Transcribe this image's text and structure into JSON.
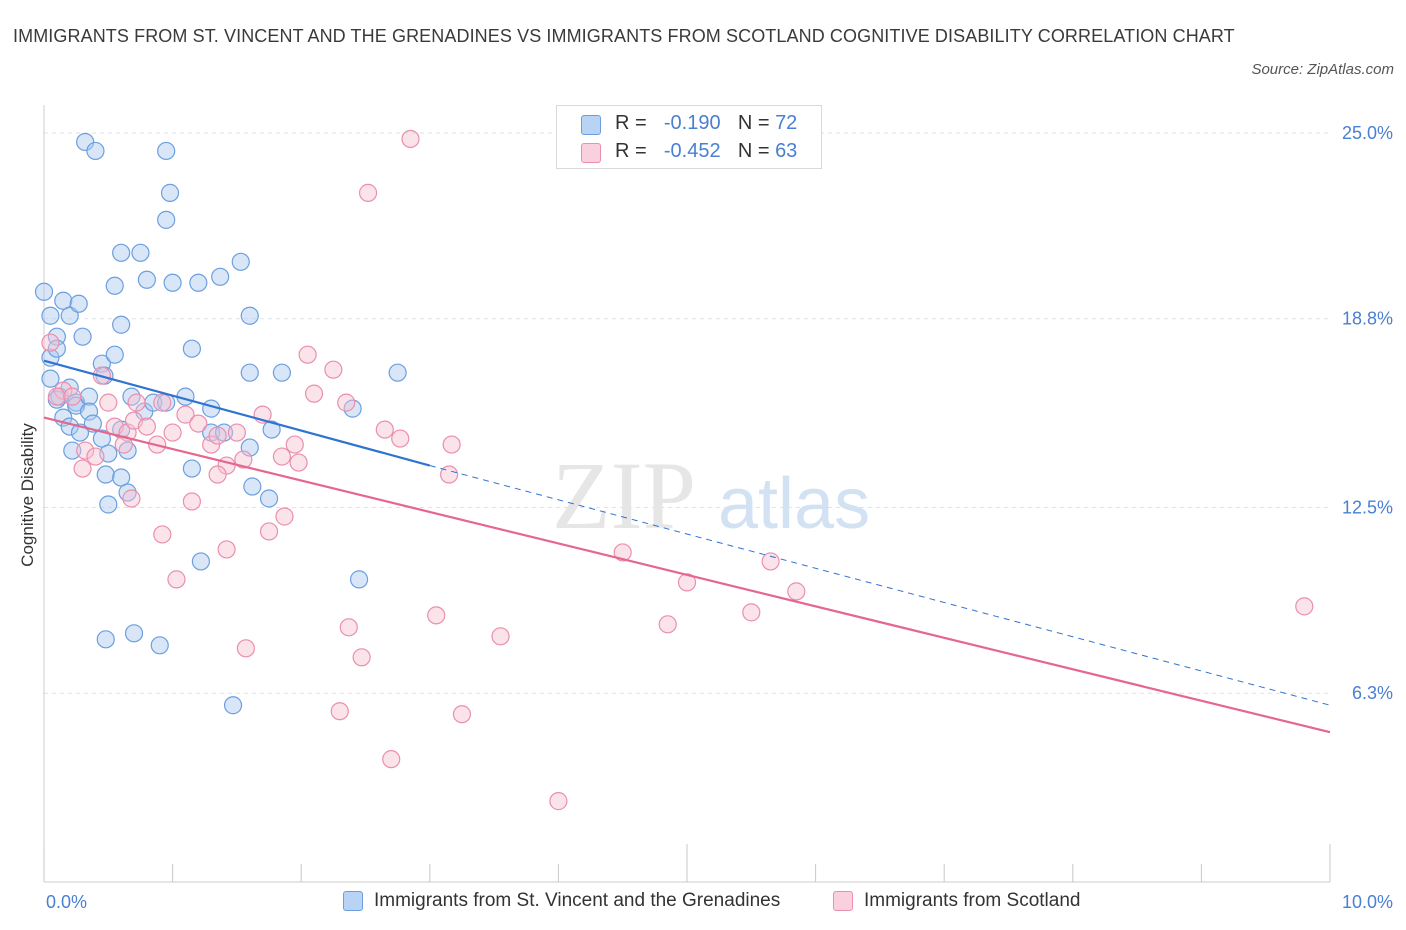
{
  "title": "IMMIGRANTS FROM ST. VINCENT AND THE GRENADINES VS IMMIGRANTS FROM SCOTLAND COGNITIVE DISABILITY CORRELATION CHART",
  "source": "Source: ZipAtlas.com",
  "watermark": {
    "zip": "ZIP",
    "atlas": "atlas"
  },
  "legend": {
    "series1": {
      "r_label": "R =",
      "r_value": "-0.190",
      "n_label": "N =",
      "n_value": "72"
    },
    "series2": {
      "r_label": "R =",
      "r_value": "-0.452",
      "n_label": "N =",
      "n_value": "63"
    }
  },
  "colors": {
    "blue_fill": "#a9c8f0",
    "blue_stroke": "#6c9fe0",
    "blue_line": "#2f74d0",
    "pink_fill": "#f6c0d1",
    "pink_stroke": "#ea8fae",
    "pink_line": "#e5668f",
    "tick_label": "#4a7fd1",
    "grid": "#dde3ea"
  },
  "chart_data": {
    "type": "scatter",
    "title": "IMMIGRANTS FROM ST. VINCENT AND THE GRENADINES VS IMMIGRANTS FROM SCOTLAND COGNITIVE DISABILITY CORRELATION CHART",
    "xlabel": "",
    "ylabel": "Cognitive Disability",
    "xlim": [
      0,
      10
    ],
    "ylim": [
      0,
      25.6
    ],
    "x_tick_labels": [
      "0.0%",
      "10.0%"
    ],
    "y_ticks": [
      6.3,
      12.5,
      18.8,
      25.0
    ],
    "y_tick_labels": [
      "6.3%",
      "12.5%",
      "18.8%",
      "25.0%"
    ],
    "grid": "horizontal dashed",
    "legend_position": "top-center",
    "series": [
      {
        "name": "Immigrants from St. Vincent and the Grenadines",
        "color": "#6c9fe0",
        "trend": {
          "x": [
            0.0,
            3.0
          ],
          "y": [
            17.4,
            13.9
          ],
          "dashed_extension": {
            "x": [
              3.0,
              10.0
            ],
            "y": [
              13.9,
              5.9
            ]
          }
        },
        "points": [
          [
            0.0,
            19.7
          ],
          [
            0.05,
            18.9
          ],
          [
            0.1,
            18.2
          ],
          [
            0.05,
            17.5
          ],
          [
            0.1,
            17.8
          ],
          [
            0.15,
            19.4
          ],
          [
            0.2,
            18.9
          ],
          [
            0.27,
            19.3
          ],
          [
            0.3,
            18.2
          ],
          [
            0.05,
            16.8
          ],
          [
            0.12,
            16.2
          ],
          [
            0.2,
            16.5
          ],
          [
            0.25,
            16.0
          ],
          [
            0.15,
            15.5
          ],
          [
            0.2,
            15.2
          ],
          [
            0.25,
            15.9
          ],
          [
            0.35,
            16.2
          ],
          [
            0.45,
            17.3
          ],
          [
            0.55,
            17.6
          ],
          [
            0.6,
            18.6
          ],
          [
            0.47,
            16.9
          ],
          [
            0.35,
            15.7
          ],
          [
            0.38,
            15.3
          ],
          [
            0.28,
            15.0
          ],
          [
            0.45,
            14.8
          ],
          [
            0.22,
            14.4
          ],
          [
            0.5,
            14.3
          ],
          [
            0.48,
            13.6
          ],
          [
            0.6,
            13.5
          ],
          [
            0.5,
            12.6
          ],
          [
            0.65,
            14.4
          ],
          [
            0.6,
            15.1
          ],
          [
            0.68,
            16.2
          ],
          [
            0.78,
            15.7
          ],
          [
            0.85,
            16.0
          ],
          [
            0.95,
            16.0
          ],
          [
            1.1,
            16.2
          ],
          [
            1.15,
            13.8
          ],
          [
            1.3,
            15.0
          ],
          [
            1.4,
            15.0
          ],
          [
            1.3,
            15.8
          ],
          [
            1.6,
            17.0
          ],
          [
            1.62,
            13.2
          ],
          [
            1.75,
            12.8
          ],
          [
            1.77,
            15.1
          ],
          [
            1.85,
            17.0
          ],
          [
            2.4,
            15.8
          ],
          [
            1.15,
            17.8
          ],
          [
            1.6,
            18.9
          ],
          [
            1.37,
            20.2
          ],
          [
            1.53,
            20.7
          ],
          [
            1.2,
            20.0
          ],
          [
            1.0,
            20.0
          ],
          [
            0.8,
            20.1
          ],
          [
            0.75,
            21.0
          ],
          [
            0.55,
            19.9
          ],
          [
            0.6,
            21.0
          ],
          [
            0.95,
            22.1
          ],
          [
            0.98,
            23.0
          ],
          [
            0.95,
            24.4
          ],
          [
            0.32,
            24.7
          ],
          [
            0.4,
            24.4
          ],
          [
            1.22,
            10.7
          ],
          [
            2.45,
            10.1
          ],
          [
            0.48,
            8.1
          ],
          [
            0.7,
            8.3
          ],
          [
            0.9,
            7.9
          ],
          [
            1.47,
            5.9
          ],
          [
            1.6,
            14.5
          ],
          [
            2.75,
            17.0
          ],
          [
            0.1,
            16.1
          ],
          [
            0.65,
            13.0
          ]
        ]
      },
      {
        "name": "Immigrants from Scotland",
        "color": "#ea8fae",
        "trend": {
          "x": [
            0.0,
            10.0
          ],
          "y": [
            15.5,
            5.0
          ]
        },
        "points": [
          [
            0.05,
            18.0
          ],
          [
            0.15,
            16.4
          ],
          [
            0.1,
            16.2
          ],
          [
            0.22,
            16.2
          ],
          [
            0.32,
            14.4
          ],
          [
            0.3,
            13.8
          ],
          [
            0.4,
            14.2
          ],
          [
            0.45,
            16.9
          ],
          [
            0.5,
            16.0
          ],
          [
            0.55,
            15.2
          ],
          [
            0.65,
            15.0
          ],
          [
            0.62,
            14.6
          ],
          [
            0.7,
            15.4
          ],
          [
            0.72,
            16.0
          ],
          [
            0.8,
            15.2
          ],
          [
            0.88,
            14.6
          ],
          [
            0.92,
            16.0
          ],
          [
            1.0,
            15.0
          ],
          [
            1.1,
            15.6
          ],
          [
            1.2,
            15.3
          ],
          [
            1.3,
            14.6
          ],
          [
            1.35,
            14.9
          ],
          [
            1.42,
            13.9
          ],
          [
            1.5,
            15.0
          ],
          [
            1.55,
            14.1
          ],
          [
            1.7,
            15.6
          ],
          [
            1.85,
            14.2
          ],
          [
            1.95,
            14.6
          ],
          [
            1.98,
            14.0
          ],
          [
            2.05,
            17.6
          ],
          [
            2.1,
            16.3
          ],
          [
            2.25,
            17.1
          ],
          [
            2.35,
            16.0
          ],
          [
            2.65,
            15.1
          ],
          [
            2.77,
            14.8
          ],
          [
            3.15,
            13.6
          ],
          [
            3.17,
            14.6
          ],
          [
            0.68,
            12.8
          ],
          [
            0.92,
            11.6
          ],
          [
            1.15,
            12.7
          ],
          [
            1.35,
            13.6
          ],
          [
            1.42,
            11.1
          ],
          [
            1.75,
            11.7
          ],
          [
            1.87,
            12.2
          ],
          [
            1.03,
            10.1
          ],
          [
            1.57,
            7.8
          ],
          [
            2.37,
            8.5
          ],
          [
            2.47,
            7.5
          ],
          [
            2.3,
            5.7
          ],
          [
            3.05,
            8.9
          ],
          [
            3.25,
            5.6
          ],
          [
            3.55,
            8.2
          ],
          [
            2.7,
            4.1
          ],
          [
            4.0,
            2.7
          ],
          [
            4.5,
            11.0
          ],
          [
            4.85,
            8.6
          ],
          [
            5.0,
            10.0
          ],
          [
            5.5,
            9.0
          ],
          [
            5.65,
            10.7
          ],
          [
            5.85,
            9.7
          ],
          [
            9.8,
            9.2
          ],
          [
            2.85,
            24.8
          ],
          [
            2.52,
            23.0
          ]
        ]
      }
    ]
  },
  "x_axis": {
    "left_label": "0.0%",
    "right_label": "10.0%"
  },
  "y_axis": {
    "label": "Cognitive Disability"
  },
  "bottom_legend": {
    "item1": "Immigrants from St. Vincent and the Grenadines",
    "item2": "Immigrants from Scotland"
  }
}
